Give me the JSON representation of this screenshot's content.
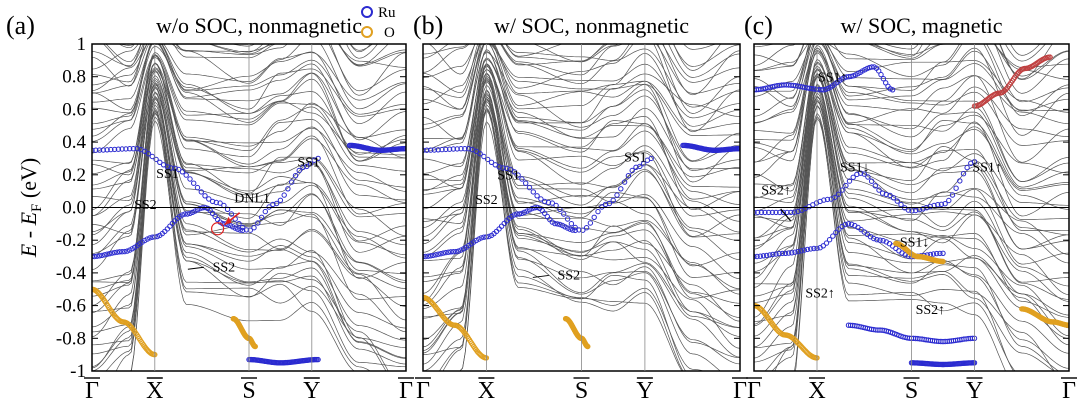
{
  "figure": {
    "ylabel_main": "E",
    "ylabel_sep": " - ",
    "ylabel_E2": "E",
    "ylabel_sub": "F",
    "ylabel_unit": " (eV)",
    "legend": [
      {
        "label": "Ru",
        "color": "#2b2bd0"
      },
      {
        "label": "O",
        "color": "#e0a020"
      }
    ]
  },
  "chart_data": [
    {
      "type": "line",
      "letter": "(a)",
      "title": "w/o SOC, nonmagnetic",
      "ylim": [
        -1,
        1
      ],
      "yticks": [
        -1,
        -0.8,
        -0.6,
        -0.4,
        -0.2,
        0.0,
        0.2,
        0.4,
        0.6,
        0.8,
        1
      ],
      "ytick_labels": [
        "-1",
        "-0.8",
        "-0.6",
        "-0.4",
        "-0.2",
        "0.0",
        "0.2",
        "0.4",
        "0.6",
        "0.8",
        "1"
      ],
      "kpoints": [
        "Γ",
        "X",
        "S",
        "Y",
        "Γ"
      ],
      "kpoint_x": [
        0,
        0.2,
        0.5,
        0.7,
        1.0
      ],
      "annotations": [
        {
          "text": "SS1",
          "k": 0.24,
          "E": 0.18
        },
        {
          "text": "SS1",
          "k": 0.69,
          "E": 0.25
        },
        {
          "text": "SS2",
          "k": 0.17,
          "E": -0.01
        },
        {
          "text": "DNL1",
          "k": 0.51,
          "E": 0.03
        },
        {
          "text": "SS2",
          "k": 0.42,
          "E": -0.39
        }
      ]
    },
    {
      "type": "line",
      "letter": "(b)",
      "title": "w/ SOC, nonmagnetic",
      "ylim": [
        -1,
        1
      ],
      "kpoints": [
        "Γ",
        "X",
        "S",
        "Y",
        "Γ"
      ],
      "kpoint_x": [
        0,
        0.2,
        0.5,
        0.7,
        1.0
      ],
      "annotations": [
        {
          "text": "SS1",
          "k": 0.27,
          "E": 0.17
        },
        {
          "text": "SS1",
          "k": 0.67,
          "E": 0.28
        },
        {
          "text": "SS2",
          "k": 0.2,
          "E": 0.02
        },
        {
          "text": "SS2",
          "k": 0.46,
          "E": -0.44
        }
      ]
    },
    {
      "type": "line",
      "letter": "(c)",
      "title": "w/ SOC, magnetic",
      "ylim": [
        -1,
        1
      ],
      "kpoints": [
        "Γ",
        "X",
        "S",
        "Y",
        "Γ"
      ],
      "kpoint_x": [
        0,
        0.2,
        0.5,
        0.7,
        1.0
      ],
      "annotations": [
        {
          "text": "SS1↑",
          "k": 0.25,
          "E": 0.77
        },
        {
          "text": "SS1↓",
          "k": 0.32,
          "E": 0.22
        },
        {
          "text": "SS1↑",
          "k": 0.74,
          "E": 0.22
        },
        {
          "text": "SS2↑",
          "k": 0.07,
          "E": 0.08
        },
        {
          "text": "SS1↓",
          "k": 0.51,
          "E": -0.24
        },
        {
          "text": "SS2↑",
          "k": 0.21,
          "E": -0.55
        },
        {
          "text": "SS2↑",
          "k": 0.56,
          "E": -0.65
        }
      ]
    }
  ]
}
